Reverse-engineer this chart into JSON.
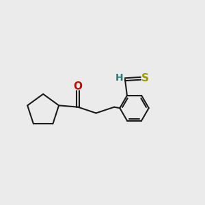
{
  "background_color": "#ebebeb",
  "line_color": "#1a1a1a",
  "O_color": "#cc0000",
  "S_color": "#999900",
  "H_color": "#337777",
  "line_width": 1.5,
  "fig_width": 3.0,
  "fig_height": 3.0,
  "dpi": 100,
  "xlim": [
    0,
    10
  ],
  "ylim": [
    0,
    10
  ]
}
